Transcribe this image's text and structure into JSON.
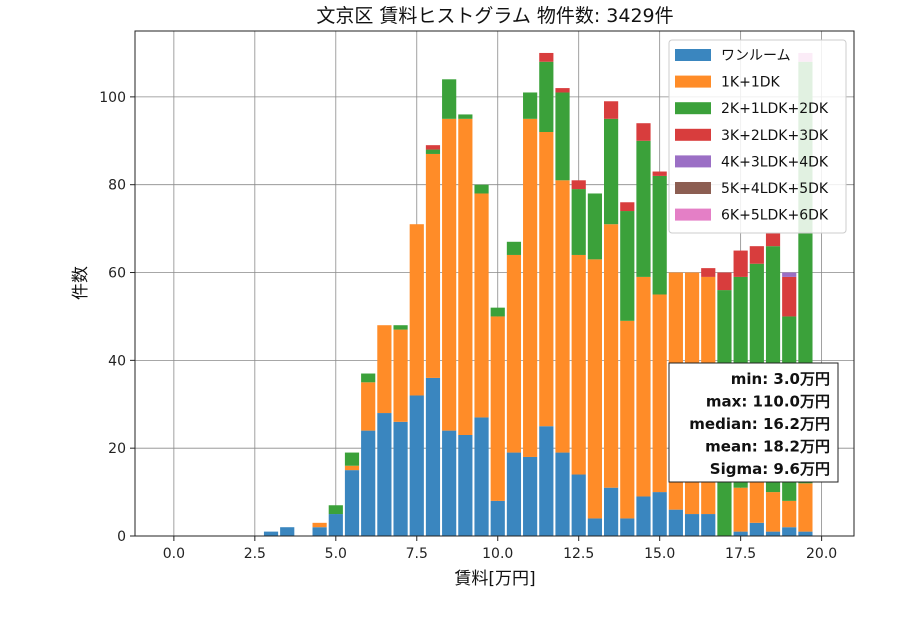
{
  "chart_data": {
    "type": "bar",
    "stacked": true,
    "title": "文京区 賃料ヒストグラム 物件数: 3429件",
    "xlabel": "賃料[万円]",
    "ylabel": "件数",
    "xlim": [
      -1.2,
      21.0
    ],
    "ylim": [
      0,
      115
    ],
    "xticks": [
      "0.0",
      "2.5",
      "5.0",
      "7.5",
      "10.0",
      "12.5",
      "15.0",
      "17.5",
      "20.0"
    ],
    "xtick_values": [
      0,
      2.5,
      5,
      7.5,
      10,
      12.5,
      15,
      17.5,
      20
    ],
    "yticks": [
      "0",
      "20",
      "40",
      "60",
      "80",
      "100"
    ],
    "ytick_values": [
      0,
      20,
      40,
      60,
      80,
      100
    ],
    "grid": true,
    "legend_position": "top-right",
    "bin_width": 0.5,
    "bins": [
      3.0,
      3.5,
      4.0,
      4.5,
      5.0,
      5.5,
      6.0,
      6.5,
      7.0,
      7.5,
      8.0,
      8.5,
      9.0,
      9.5,
      10.0,
      10.5,
      11.0,
      11.5,
      12.0,
      12.5,
      13.0,
      13.5,
      14.0,
      14.5,
      15.0,
      15.5,
      16.0,
      16.5,
      17.0,
      17.5,
      18.0,
      18.5,
      19.0,
      19.5
    ],
    "series": [
      {
        "name": "ワンルーム",
        "color": "#3a86bf",
        "values": [
          1,
          2,
          0,
          2,
          5,
          15,
          24,
          28,
          26,
          32,
          36,
          24,
          23,
          27,
          8,
          19,
          18,
          25,
          19,
          14,
          4,
          11,
          4,
          9,
          10,
          6,
          5,
          5,
          0,
          1,
          3,
          1,
          2,
          1
        ]
      },
      {
        "name": "1K+1DK",
        "color": "#ff8c28",
        "values": [
          0,
          0,
          0,
          1,
          0,
          1,
          11,
          20,
          21,
          39,
          51,
          71,
          72,
          51,
          42,
          45,
          77,
          67,
          62,
          50,
          59,
          60,
          45,
          50,
          45,
          54,
          55,
          54,
          0,
          10,
          12,
          9,
          6,
          11
        ]
      },
      {
        "name": "2K+1LDK+2DK",
        "color": "#3ba13a",
        "values": [
          0,
          0,
          0,
          0,
          2,
          3,
          2,
          0,
          1,
          0,
          1,
          9,
          1,
          2,
          2,
          3,
          6,
          16,
          20,
          15,
          15,
          24,
          25,
          31,
          27,
          0,
          0,
          0,
          56,
          48,
          47,
          56,
          42,
          96
        ]
      },
      {
        "name": "3K+2LDK+3DK",
        "color": "#d83d3d",
        "values": [
          0,
          0,
          0,
          0,
          0,
          0,
          0,
          0,
          0,
          0,
          1,
          0,
          0,
          0,
          0,
          0,
          0,
          2,
          1,
          2,
          0,
          4,
          2,
          4,
          1,
          0,
          0,
          2,
          4,
          6,
          4,
          3,
          9,
          0
        ]
      },
      {
        "name": "4K+3LDK+4DK",
        "color": "#9b6fc5",
        "values": [
          0,
          0,
          0,
          0,
          0,
          0,
          0,
          0,
          0,
          0,
          0,
          0,
          0,
          0,
          0,
          0,
          0,
          0,
          0,
          0,
          0,
          0,
          0,
          0,
          0,
          0,
          0,
          0,
          0,
          0,
          0,
          0,
          1,
          0
        ]
      },
      {
        "name": "5K+4LDK+5DK",
        "color": "#8c5e52",
        "values": [
          0,
          0,
          0,
          0,
          0,
          0,
          0,
          0,
          0,
          0,
          0,
          0,
          0,
          0,
          0,
          0,
          0,
          0,
          0,
          0,
          0,
          0,
          0,
          0,
          0,
          0,
          0,
          0,
          0,
          0,
          0,
          0,
          0,
          0
        ]
      },
      {
        "name": "6K+5LDK+6DK",
        "color": "#e47fc6",
        "values": [
          0,
          0,
          0,
          0,
          0,
          0,
          0,
          0,
          0,
          0,
          0,
          0,
          0,
          0,
          0,
          0,
          0,
          0,
          0,
          0,
          0,
          0,
          0,
          0,
          0,
          0,
          0,
          0,
          0,
          0,
          0,
          0,
          0,
          2
        ]
      }
    ],
    "stats": [
      "min: 3.0万円",
      "max: 110.0万円",
      "median: 16.2万円",
      "mean: 18.2万円",
      "Sigma: 9.6万円"
    ]
  }
}
